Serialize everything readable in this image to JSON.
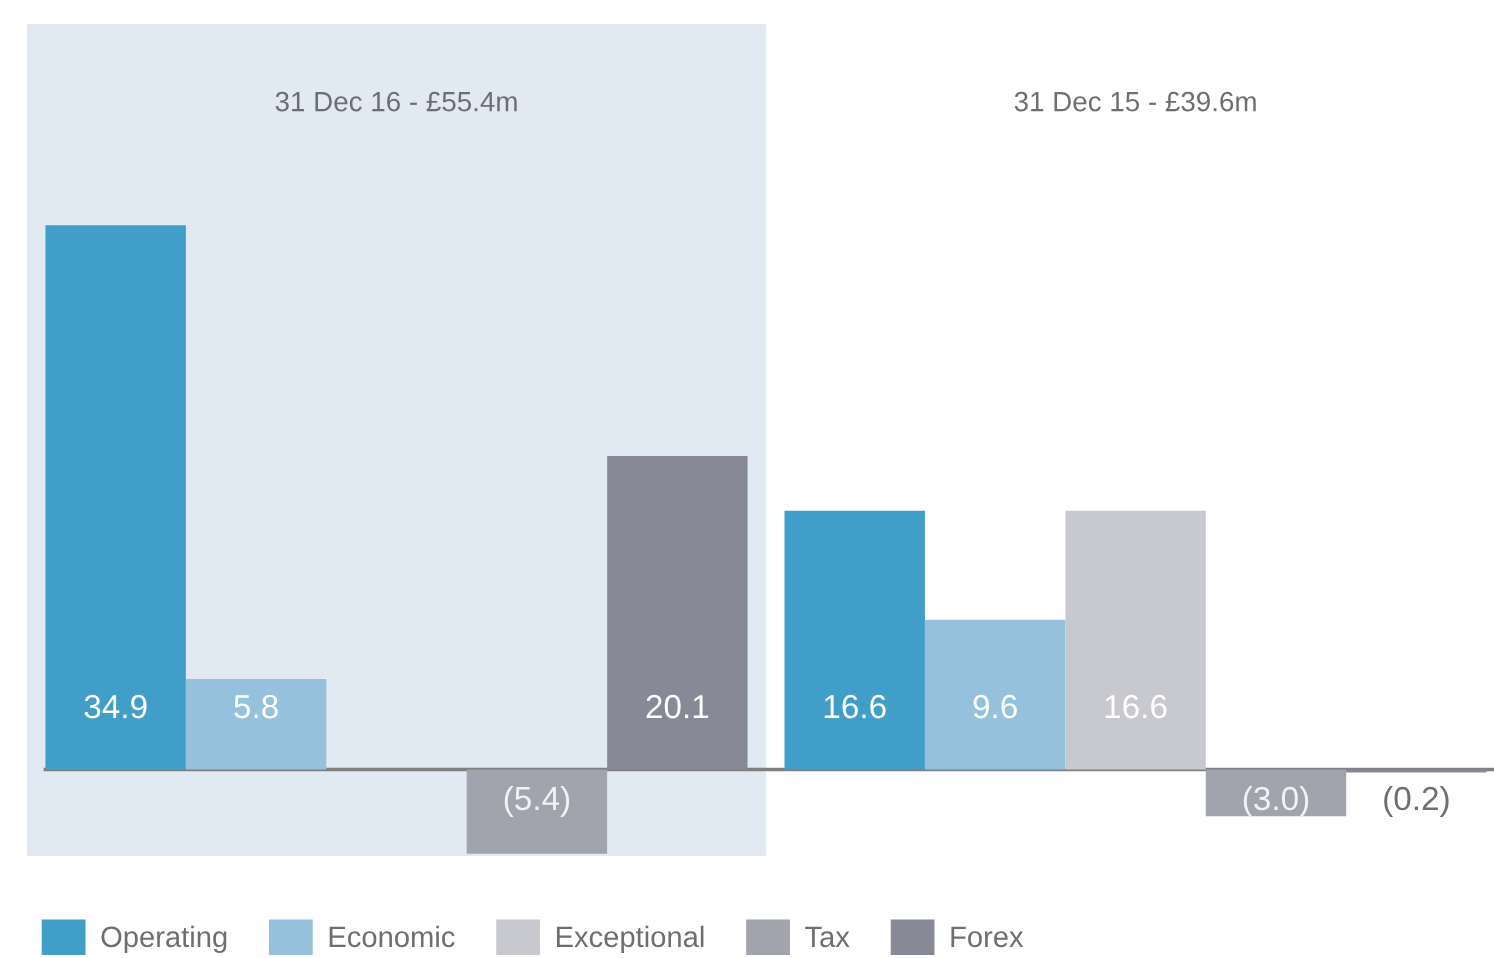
{
  "chart_data": {
    "type": "bar",
    "categories": [
      "31 Dec 16 - £55.4m",
      "31 Dec 15 - £39.6m"
    ],
    "series": [
      {
        "name": "Operating",
        "color": "#419ec9",
        "values": [
          34.9,
          16.6
        ],
        "value_labels": [
          "34.9",
          "16.6"
        ]
      },
      {
        "name": "Economic",
        "color": "#95c1dc",
        "values": [
          5.8,
          9.6
        ],
        "value_labels": [
          "5.8",
          "9.6"
        ]
      },
      {
        "name": "Exceptional",
        "color": "#c8c9ce",
        "values": [
          null,
          16.6
        ],
        "value_labels": [
          null,
          "16.6"
        ]
      },
      {
        "name": "Tax",
        "color": "#a2a4ad",
        "values": [
          -5.4,
          -3.0
        ],
        "value_labels": [
          "(5.4)",
          "(3.0)"
        ]
      },
      {
        "name": "Forex",
        "color": "#878a96",
        "values": [
          20.1,
          -0.2
        ],
        "value_labels": [
          "20.1",
          "(0.2)"
        ]
      }
    ],
    "bands": [
      {
        "axis": "x",
        "from": "31 Dec 16 - £55.4m",
        "to": "31 Dec 16 - £55.4m",
        "color": "#e1e9f3"
      }
    ],
    "legend": "bottom"
  }
}
